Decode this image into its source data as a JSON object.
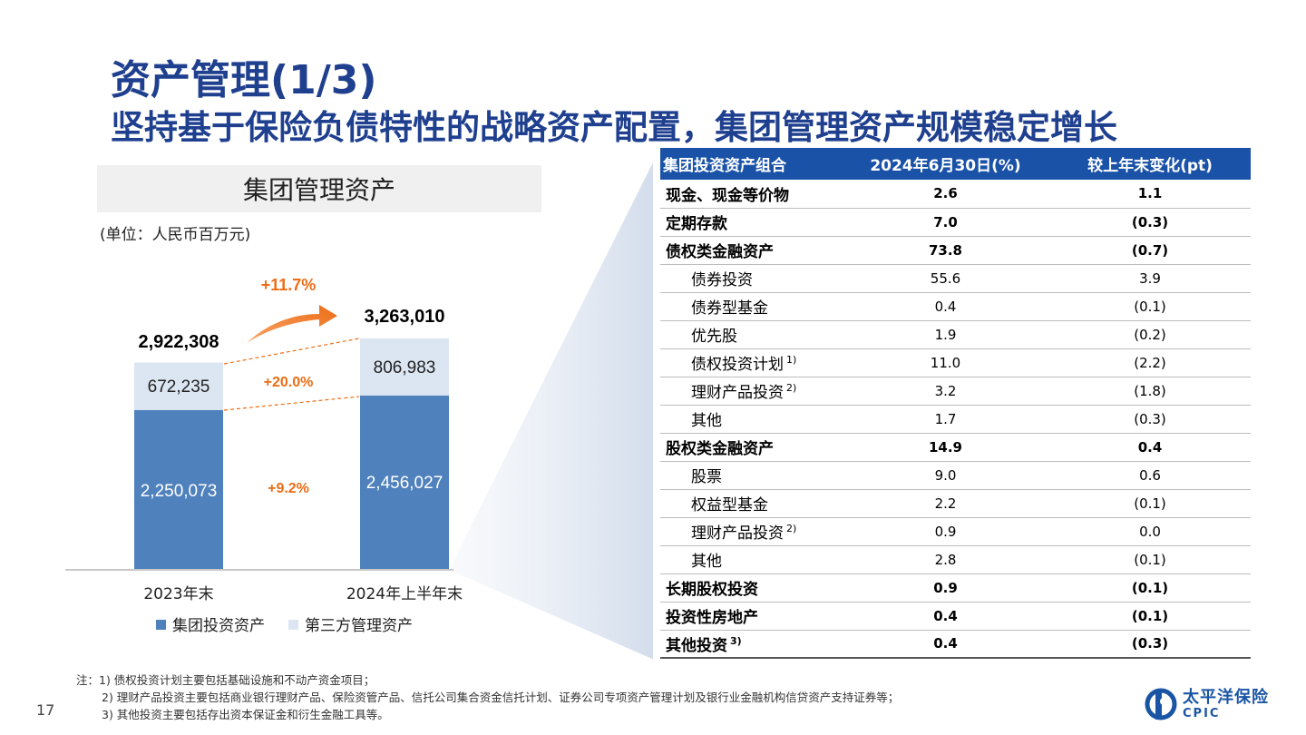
{
  "title": {
    "main": "资产管理(1/3)",
    "sub": "坚持基于保险负债特性的战略资产配置，集团管理资产规模稳定增长"
  },
  "chart_header": "集团管理资产",
  "unit": "(单位：人民币百万元)",
  "colors": {
    "title": "#1f3f8f",
    "group_asset": "#4f81bd",
    "third_party": "#dce6f2",
    "growth": "#ed6d16",
    "table_header": "#1a52a8"
  },
  "chart_data": {
    "type": "bar",
    "categories": [
      "2023年末",
      "2024年上半年末"
    ],
    "series": [
      {
        "name": "集团投资资产",
        "values": [
          2250073,
          2456027
        ]
      },
      {
        "name": "第三方管理资产",
        "values": [
          672235,
          806983
        ]
      }
    ],
    "totals": [
      2922308,
      3263010
    ],
    "labels": {
      "total_2023": "2,922,308",
      "total_2024": "3,263,010",
      "third_2023": "672,235",
      "third_2024": "806,983",
      "group_2023": "2,250,073",
      "group_2024": "2,456,027",
      "growth_total": "+11.7%",
      "growth_third": "+20.0%",
      "growth_group": "+9.2%"
    },
    "legend": [
      "集团投资资产",
      "第三方管理资产"
    ],
    "stacked": true
  },
  "table": {
    "headers": [
      "集团投资资产组合",
      "2024年6月30日(%)",
      "较上年末变化(pt)"
    ],
    "rows": [
      {
        "name": "现金、现金等价物",
        "value": "2.6",
        "change": "1.1",
        "bold": true,
        "sub": false,
        "note": ""
      },
      {
        "name": "定期存款",
        "value": "7.0",
        "change": "(0.3)",
        "bold": true,
        "sub": false,
        "note": ""
      },
      {
        "name": "债权类金融资产",
        "value": "73.8",
        "change": "(0.7)",
        "bold": true,
        "sub": false,
        "note": ""
      },
      {
        "name": "债券投资",
        "value": "55.6",
        "change": "3.9",
        "bold": false,
        "sub": true,
        "note": ""
      },
      {
        "name": "债券型基金",
        "value": "0.4",
        "change": "(0.1)",
        "bold": false,
        "sub": true,
        "note": ""
      },
      {
        "name": "优先股",
        "value": "1.9",
        "change": "(0.2)",
        "bold": false,
        "sub": true,
        "note": ""
      },
      {
        "name": "债权投资计划",
        "value": "11.0",
        "change": "(2.2)",
        "bold": false,
        "sub": true,
        "note": "1)"
      },
      {
        "name": "理财产品投资",
        "value": "3.2",
        "change": "(1.8)",
        "bold": false,
        "sub": true,
        "note": "2)"
      },
      {
        "name": "其他",
        "value": "1.7",
        "change": "(0.3)",
        "bold": false,
        "sub": true,
        "note": ""
      },
      {
        "name": "股权类金融资产",
        "value": "14.9",
        "change": "0.4",
        "bold": true,
        "sub": false,
        "note": ""
      },
      {
        "name": "股票",
        "value": "9.0",
        "change": "0.6",
        "bold": false,
        "sub": true,
        "note": ""
      },
      {
        "name": "权益型基金",
        "value": "2.2",
        "change": "(0.1)",
        "bold": false,
        "sub": true,
        "note": ""
      },
      {
        "name": "理财产品投资",
        "value": "0.9",
        "change": "0.0",
        "bold": false,
        "sub": true,
        "note": "2)"
      },
      {
        "name": "其他",
        "value": "2.8",
        "change": "(0.1)",
        "bold": false,
        "sub": true,
        "note": ""
      },
      {
        "name": "长期股权投资",
        "value": "0.9",
        "change": "(0.1)",
        "bold": true,
        "sub": false,
        "note": ""
      },
      {
        "name": "投资性房地产",
        "value": "0.4",
        "change": "(0.1)",
        "bold": true,
        "sub": false,
        "note": ""
      },
      {
        "name": "其他投资",
        "value": "0.4",
        "change": "(0.3)",
        "bold": true,
        "sub": false,
        "note": "3)"
      }
    ]
  },
  "notes": [
    "注：1) 债权投资计划主要包括基础设施和不动产资金项目；",
    "2) 理财产品投资主要包括商业银行理财产品、保险资管产品、信托公司集合资金信托计划、证券公司专项资产管理计划及银行业金融机构信贷资产支持证券等；",
    "3) 其他投资主要包括存出资本保证金和衍生金融工具等。"
  ],
  "page_number": "17",
  "logo": {
    "cn": "太平洋保险",
    "en": "CPIC",
    "icon": "cpic-logo-icon"
  }
}
